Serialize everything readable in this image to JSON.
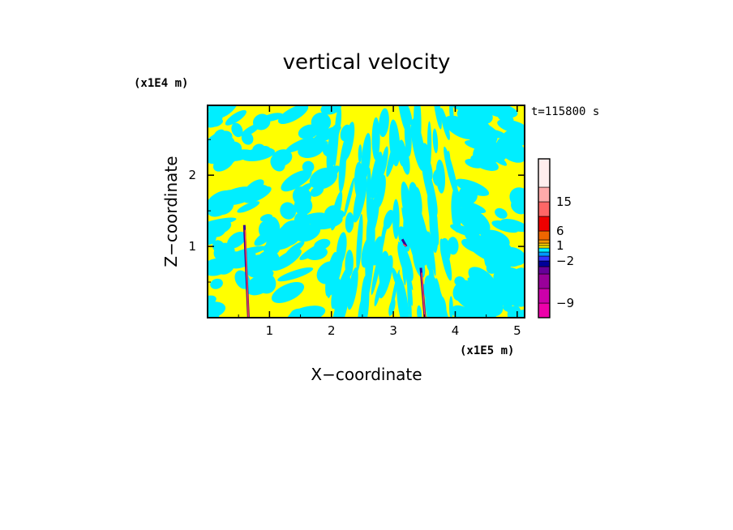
{
  "chart_data": {
    "type": "heatmap",
    "title": "vertical velocity",
    "xlabel": "X−coordinate",
    "ylabel": "Z−coordinate",
    "x_unit": "(x1E5 m)",
    "y_unit": "(x1E4 m)",
    "time_label": "t=115800 s",
    "xlim": [
      0,
      5.12
    ],
    "ylim": [
      0,
      2.98
    ],
    "x_ticks": [
      1,
      2,
      3,
      4,
      5
    ],
    "x_tick_labels": [
      "1",
      "2",
      "3",
      "4",
      "5"
    ],
    "y_ticks": [
      1,
      2
    ],
    "y_tick_labels": [
      "1",
      "2"
    ],
    "field_colors": {
      "negative": "#00eeff",
      "positive": "#ffff00"
    },
    "strong_updrafts": [
      {
        "x": 0.62,
        "z_min": 0.0,
        "z_max": 1.3,
        "peak": 15
      },
      {
        "x": 3.47,
        "z_min": 0.0,
        "z_max": 0.7,
        "peak": 15
      },
      {
        "x": 3.17,
        "z_min": 1.0,
        "z_max": 1.1,
        "peak": 6
      }
    ],
    "colorbar": {
      "levels": [
        -12,
        -9,
        -6,
        -4,
        -3,
        -2,
        -1,
        0,
        0.5,
        1,
        2,
        4,
        6,
        10,
        15,
        20,
        30
      ],
      "colors": [
        "#ee00aa",
        "#cc00aa",
        "#990099",
        "#660099",
        "#000099",
        "#3333ff",
        "#0099ff",
        "#00eeff",
        "#ffff00",
        "#ffcc00",
        "#ff9900",
        "#ee6600",
        "#ee0000",
        "#ff6666",
        "#ffaaaa",
        "#ffeeee"
      ],
      "labeled_ticks": [
        "-9",
        "-2",
        "1",
        "6",
        "15"
      ]
    }
  }
}
